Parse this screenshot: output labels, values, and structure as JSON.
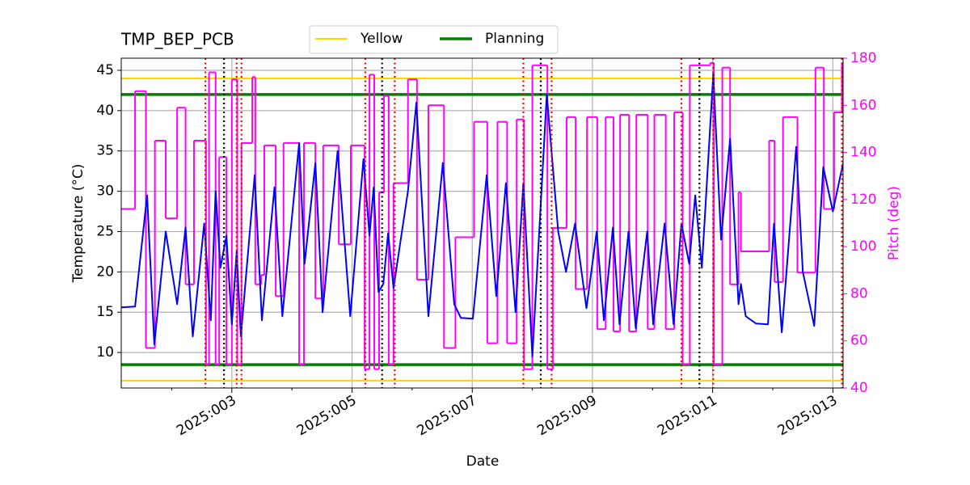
{
  "chart_data": {
    "type": "line",
    "title": "TMP_BEP_PCB",
    "xlabel": "Date",
    "ylabel": "Temperature (°C)",
    "y2label": "Pitch (deg)",
    "xlim": [
      1.16,
      13.17
    ],
    "xticks": [
      {
        "value": 3,
        "label": "2025:003"
      },
      {
        "value": 5,
        "label": "2025:005"
      },
      {
        "value": 7,
        "label": "2025:007"
      },
      {
        "value": 9,
        "label": "2025:009"
      },
      {
        "value": 11,
        "label": "2025:011"
      },
      {
        "value": 13,
        "label": "2025:013"
      }
    ],
    "xminor_ticks": [
      2,
      4,
      6,
      8,
      10,
      12
    ],
    "ylim": [
      5.6,
      46.5
    ],
    "yticks": [
      10,
      15,
      20,
      25,
      30,
      35,
      40,
      45
    ],
    "y2lim": [
      40,
      180
    ],
    "y2ticks": [
      40,
      60,
      80,
      100,
      120,
      140,
      160,
      180
    ],
    "y2color": "#ff00ff",
    "grid": true,
    "legend": "upper center",
    "series": [
      {
        "color": "#0000ff",
        "x": [
          1.16,
          1.39,
          1.59,
          1.71,
          1.9,
          2.09,
          2.23,
          2.35,
          2.54,
          2.65,
          2.73,
          2.81,
          2.91,
          3.0,
          3.08,
          3.15,
          3.38,
          3.5,
          3.71,
          3.84,
          4.12,
          4.21,
          4.39,
          4.51,
          4.76,
          4.97,
          5.19,
          5.29,
          5.36,
          5.44,
          5.52,
          5.6,
          5.69,
          5.93,
          6.07,
          6.27,
          6.51,
          6.7,
          6.81,
          7.01,
          7.24,
          7.4,
          7.56,
          7.72,
          7.85,
          8.0,
          8.24,
          8.43,
          8.56,
          8.71,
          8.9,
          9.07,
          9.19,
          9.34,
          9.45,
          9.6,
          9.72,
          9.91,
          10.01,
          10.2,
          10.35,
          10.48,
          10.61,
          10.71,
          10.82,
          11.01,
          11.14,
          11.29,
          11.43,
          11.47,
          11.55,
          11.72,
          11.92,
          12.02,
          12.15,
          12.39,
          12.5,
          12.69,
          12.84,
          13.0,
          13.17
        ],
        "values": [
          15.6,
          15.7,
          29.5,
          11,
          25,
          16,
          25.5,
          12,
          26,
          14,
          30,
          20.5,
          24.5,
          13.5,
          22.5,
          12,
          32,
          14,
          30.5,
          14.5,
          36,
          21,
          33.5,
          15,
          35,
          14.5,
          34,
          24.5,
          30.5,
          17.5,
          18.5,
          24.8,
          18,
          30,
          41,
          14.5,
          33.5,
          16,
          14.3,
          14.2,
          32,
          17,
          31,
          15,
          31,
          9.5,
          42,
          25,
          20,
          26,
          15.5,
          25,
          14,
          25.5,
          13.5,
          25,
          13,
          25,
          13.5,
          26,
          13.5,
          26,
          21,
          29.5,
          20.5,
          44.5,
          24,
          36.5,
          16,
          18.5,
          14.5,
          13.6,
          13.5,
          26,
          12.5,
          35.5,
          20,
          13.3,
          33,
          27.5,
          33.5
        ]
      },
      {
        "color": "#ff00ff",
        "axis": "y2",
        "step": "post",
        "x": [
          1.16,
          1.39,
          1.57,
          1.72,
          1.9,
          2.09,
          2.23,
          2.37,
          2.57,
          2.62,
          2.73,
          2.79,
          2.91,
          3.0,
          3.09,
          3.16,
          3.34,
          3.39,
          3.49,
          3.54,
          3.73,
          3.86,
          4.12,
          4.2,
          4.39,
          4.52,
          4.78,
          4.98,
          5.21,
          5.29,
          5.37,
          5.45,
          5.53,
          5.61,
          5.69,
          5.93,
          6.08,
          6.27,
          6.53,
          6.72,
          7.03,
          7.25,
          7.42,
          7.58,
          7.74,
          7.86,
          8.0,
          8.25,
          8.34,
          8.57,
          8.72,
          8.91,
          9.08,
          9.22,
          9.35,
          9.46,
          9.61,
          9.73,
          9.92,
          10.03,
          10.22,
          10.36,
          10.5,
          10.62,
          10.96,
          11.02,
          11.16,
          11.29,
          11.43,
          11.47,
          11.94,
          12.03,
          12.17,
          12.41,
          12.71,
          12.85,
          13.02,
          13.15
        ],
        "values": [
          116,
          166,
          57,
          145,
          112,
          159,
          84,
          145,
          50,
          174,
          50,
          138,
          50,
          171,
          50,
          144,
          172,
          84,
          88,
          143,
          79,
          144,
          50,
          144,
          78,
          143,
          101,
          143,
          48,
          173,
          48,
          123,
          164,
          50,
          127,
          171,
          86,
          160,
          57,
          104,
          153,
          59,
          153,
          59,
          154,
          48,
          177,
          48,
          108,
          155,
          82,
          155,
          65,
          155,
          64,
          156,
          64,
          156,
          65,
          156,
          65,
          157,
          50,
          177,
          178,
          50,
          176,
          84,
          123,
          98,
          145,
          85,
          155,
          89,
          176,
          116,
          157,
          178
        ]
      }
    ],
    "hlines": [
      {
        "name": "Yellow",
        "color": "#ffd700",
        "values": [
          44,
          6.5
        ]
      },
      {
        "name": "Planning",
        "color": "#008000",
        "values": [
          42,
          8.5
        ]
      }
    ],
    "vlines": [
      {
        "color": "#000000",
        "values": [
          2.87,
          5.5,
          8.14,
          10.78
        ]
      },
      {
        "color": "#ff0000",
        "values": [
          2.56,
          3.08,
          3.16,
          5.22,
          5.71,
          7.85,
          8.32,
          10.48,
          11.01,
          13.15
        ]
      }
    ]
  }
}
